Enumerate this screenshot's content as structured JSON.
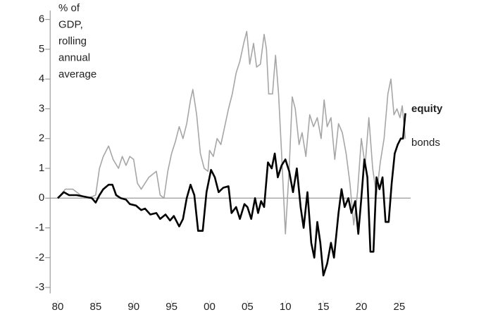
{
  "chart_data": {
    "type": "line",
    "ylabel": [
      "% of",
      "GDP,",
      "rolling",
      "annual",
      "average"
    ],
    "xlim": [
      1979,
      2026.5
    ],
    "xticks": [
      {
        "value": 1980,
        "label": "80"
      },
      {
        "value": 1985,
        "label": "85"
      },
      {
        "value": 1990,
        "label": "90"
      },
      {
        "value": 1995,
        "label": "95"
      },
      {
        "value": 2000,
        "label": "00"
      },
      {
        "value": 2005,
        "label": "05"
      },
      {
        "value": 2010,
        "label": "10"
      },
      {
        "value": 2015,
        "label": "15"
      },
      {
        "value": 2020,
        "label": "20"
      },
      {
        "value": 2025,
        "label": "25"
      }
    ],
    "ylim": [
      -3.2,
      6.3
    ],
    "yticks": [
      -3,
      -2,
      -1,
      0,
      1,
      2,
      3,
      4,
      5,
      6
    ],
    "series": [
      {
        "name": "bonds",
        "color": "#a6a6a6",
        "x": [
          1980,
          1981,
          1982,
          1983,
          1984,
          1985,
          1985.5,
          1986,
          1986.7,
          1987.3,
          1988,
          1988.5,
          1989,
          1989.5,
          1990,
          1990.5,
          1991,
          1991.5,
          1992,
          1992.5,
          1993,
          1993.5,
          1994,
          1994.5,
          1995,
          1995.5,
          1996,
          1996.5,
          1997,
          1997.5,
          1997.8,
          1998.3,
          1998.8,
          1999.3,
          1999.8,
          2000,
          2000.5,
          2001,
          2001.5,
          2002,
          2002.5,
          2003,
          2003.5,
          2004,
          2004.5,
          2004.9,
          2005.3,
          2005.8,
          2006.2,
          2006.7,
          2007.2,
          2007.5,
          2007.8,
          2008.3,
          2008.7,
          2009.1,
          2009.5,
          2010,
          2010.5,
          2010.9,
          2011.3,
          2011.8,
          2012.2,
          2012.7,
          2013.2,
          2013.7,
          2014.2,
          2014.7,
          2015.1,
          2015.5,
          2016,
          2016.5,
          2017,
          2017.5,
          2018,
          2018.5,
          2019,
          2019.5,
          2020,
          2020.5,
          2021,
          2021.5,
          2022,
          2022.5,
          2023,
          2023.5,
          2023.9,
          2024.3,
          2024.7,
          2025.1,
          2025.4,
          2025.8
        ],
        "values": [
          0,
          0.3,
          0.3,
          0.1,
          0.0,
          0.1,
          1.0,
          1.4,
          1.75,
          1.3,
          1.0,
          1.4,
          1.1,
          1.4,
          1.3,
          0.5,
          0.3,
          0.5,
          0.7,
          0.8,
          0.9,
          0.1,
          0.0,
          0.9,
          1.5,
          1.9,
          2.4,
          2.0,
          2.5,
          3.3,
          3.65,
          2.8,
          1.5,
          1.0,
          0.9,
          1.6,
          1.4,
          2.0,
          1.8,
          2.4,
          3.0,
          3.5,
          4.2,
          4.6,
          5.2,
          5.6,
          4.5,
          5.2,
          4.4,
          4.5,
          5.5,
          5.0,
          3.5,
          3.5,
          4.8,
          3.5,
          1.5,
          -1.2,
          1.0,
          3.4,
          3.0,
          1.8,
          2.2,
          1.4,
          2.8,
          2.4,
          2.7,
          2.0,
          3.3,
          2.4,
          2.7,
          1.3,
          2.5,
          2.2,
          1.5,
          0.5,
          -0.9,
          0.2,
          2.0,
          1.1,
          2.7,
          1.0,
          0.1,
          1.2,
          2.0,
          3.5,
          4.0,
          2.8,
          3.0,
          2.7,
          3.1,
          2.0
        ]
      },
      {
        "name": "equity",
        "color": "#000000",
        "x": [
          1980,
          1980.8,
          1981.5,
          1982.5,
          1983.5,
          1984.5,
          1985,
          1985.5,
          1986,
          1986.7,
          1987.2,
          1987.7,
          1988.3,
          1989,
          1989.5,
          1990.3,
          1991,
          1991.5,
          1992.2,
          1993,
          1993.5,
          1994.2,
          1994.8,
          1995.3,
          1996,
          1996.5,
          1997,
          1997.5,
          1998,
          1998.5,
          1999.1,
          1999.6,
          2000.2,
          2000.7,
          2001.2,
          2001.8,
          2002.5,
          2002.9,
          2003.5,
          2004,
          2004.6,
          2005,
          2005.5,
          2006,
          2006.4,
          2006.8,
          2007.2,
          2007.7,
          2008.2,
          2008.6,
          2009,
          2009.5,
          2010,
          2010.5,
          2011,
          2011.5,
          2012,
          2012.4,
          2012.9,
          2013.4,
          2013.8,
          2014.2,
          2014.6,
          2015,
          2015.5,
          2016,
          2016.4,
          2017,
          2017.4,
          2017.8,
          2018.3,
          2018.7,
          2019.2,
          2019.6,
          2020,
          2020.4,
          2020.8,
          2021.2,
          2021.6,
          2022,
          2022.4,
          2022.8,
          2023.2,
          2023.6,
          2024,
          2024.4,
          2024.8,
          2025.2,
          2025.5,
          2025.8
        ],
        "values": [
          0,
          0.2,
          0.1,
          0.1,
          0.05,
          0.0,
          -0.15,
          0.1,
          0.3,
          0.45,
          0.45,
          0.1,
          0.0,
          -0.05,
          -0.2,
          -0.25,
          -0.4,
          -0.35,
          -0.55,
          -0.5,
          -0.7,
          -0.55,
          -0.75,
          -0.6,
          -0.95,
          -0.7,
          0.0,
          0.45,
          0.1,
          -1.1,
          -1.1,
          0.2,
          0.95,
          0.7,
          0.2,
          0.35,
          0.4,
          -0.5,
          -0.3,
          -0.7,
          -0.2,
          -0.3,
          -0.7,
          0.0,
          -0.5,
          -0.1,
          -0.3,
          1.2,
          1.0,
          1.5,
          0.7,
          1.1,
          1.3,
          0.9,
          0.2,
          1.0,
          -0.3,
          -1.0,
          0.2,
          -1.5,
          -2.0,
          -0.8,
          -1.5,
          -2.6,
          -2.2,
          -1.5,
          -2.0,
          -0.5,
          0.3,
          -0.3,
          0.0,
          -0.5,
          -0.1,
          -1.2,
          0.0,
          1.3,
          0.7,
          -1.8,
          -1.8,
          0.7,
          0.3,
          0.7,
          -0.8,
          -0.8,
          0.5,
          1.5,
          1.8,
          2.0,
          2.0,
          2.85
        ]
      }
    ]
  }
}
